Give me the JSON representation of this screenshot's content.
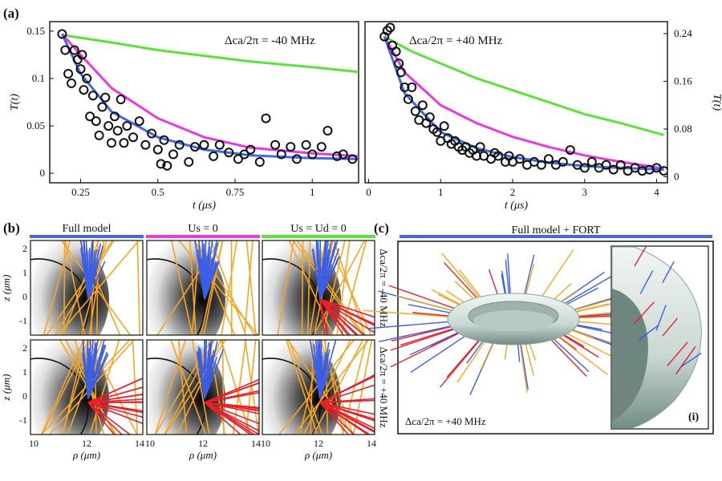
{
  "panel_labels": {
    "a": "(a)",
    "b": "(b)",
    "c": "(c)",
    "inset": "(i)"
  },
  "chart_data": [
    {
      "type": "scatter",
      "annotation": "Δca/2π = -40 MHz",
      "xlabel": "t (μs)",
      "ylabel": "T(t)",
      "xlim": [
        0.15,
        1.15
      ],
      "ylim": [
        -0.01,
        0.16
      ],
      "xticks": [
        "0.25",
        "0.5",
        "0.75",
        "1"
      ],
      "yticks": [
        "0",
        "0.05",
        "0.1",
        "0.15"
      ],
      "points": [
        [
          0.19,
          0.147
        ],
        [
          0.2,
          0.13
        ],
        [
          0.21,
          0.105
        ],
        [
          0.22,
          0.095
        ],
        [
          0.23,
          0.13
        ],
        [
          0.24,
          0.12
        ],
        [
          0.25,
          0.11
        ],
        [
          0.255,
          0.125
        ],
        [
          0.26,
          0.088
        ],
        [
          0.27,
          0.1
        ],
        [
          0.28,
          0.06
        ],
        [
          0.29,
          0.082
        ],
        [
          0.3,
          0.055
        ],
        [
          0.31,
          0.04
        ],
        [
          0.32,
          0.07
        ],
        [
          0.33,
          0.08
        ],
        [
          0.34,
          0.05
        ],
        [
          0.35,
          0.032
        ],
        [
          0.36,
          0.06
        ],
        [
          0.37,
          0.045
        ],
        [
          0.38,
          0.078
        ],
        [
          0.39,
          0.032
        ],
        [
          0.4,
          0.05
        ],
        [
          0.42,
          0.038
        ],
        [
          0.44,
          0.055
        ],
        [
          0.46,
          0.03
        ],
        [
          0.48,
          0.042
        ],
        [
          0.5,
          0.025
        ],
        [
          0.51,
          0.01
        ],
        [
          0.52,
          0.035
        ],
        [
          0.53,
          0.008
        ],
        [
          0.55,
          0.02
        ],
        [
          0.57,
          0.03
        ],
        [
          0.6,
          0.012
        ],
        [
          0.62,
          0.028
        ],
        [
          0.65,
          0.03
        ],
        [
          0.68,
          0.018
        ],
        [
          0.7,
          0.03
        ],
        [
          0.73,
          0.022
        ],
        [
          0.76,
          0.015
        ],
        [
          0.78,
          0.02
        ],
        [
          0.8,
          0.025
        ],
        [
          0.83,
          0.012
        ],
        [
          0.85,
          0.058
        ],
        [
          0.88,
          0.03
        ],
        [
          0.9,
          0.02
        ],
        [
          0.93,
          0.028
        ],
        [
          0.95,
          0.015
        ],
        [
          0.98,
          0.03
        ],
        [
          1.0,
          0.02
        ],
        [
          1.03,
          0.028
        ],
        [
          1.05,
          0.045
        ],
        [
          1.08,
          0.018
        ],
        [
          1.1,
          0.02
        ],
        [
          1.13,
          0.015
        ]
      ],
      "series": [
        {
          "name": "Full model",
          "color": "#4169e1",
          "x": [
            0.19,
            0.25,
            0.35,
            0.5,
            0.65,
            0.8,
            1.0,
            1.15
          ],
          "y": [
            0.147,
            0.105,
            0.065,
            0.038,
            0.025,
            0.019,
            0.016,
            0.015
          ]
        },
        {
          "name": "Us = 0",
          "color": "#e83ae0",
          "x": [
            0.19,
            0.25,
            0.35,
            0.5,
            0.65,
            0.8,
            1.0,
            1.15
          ],
          "y": [
            0.147,
            0.125,
            0.09,
            0.058,
            0.038,
            0.027,
            0.021,
            0.018
          ]
        },
        {
          "name": "Us = Ud = 0",
          "color": "#5ae33a",
          "x": [
            0.19,
            0.35,
            0.5,
            0.65,
            0.8,
            1.0,
            1.15
          ],
          "y": [
            0.146,
            0.138,
            0.13,
            0.124,
            0.118,
            0.112,
            0.107
          ]
        }
      ]
    },
    {
      "type": "scatter",
      "annotation": "Δca/2π = +40 MHz",
      "xlabel": "t (μs)",
      "ylabel": "T(t)",
      "xlim": [
        -0.05,
        4.15
      ],
      "ylim": [
        -0.01,
        0.26
      ],
      "xticks": [
        "0",
        "1",
        "2",
        "3",
        "4"
      ],
      "yticks": [
        "0",
        "0.08",
        "0.16",
        "0.24"
      ],
      "points": [
        [
          0.22,
          0.235
        ],
        [
          0.26,
          0.245
        ],
        [
          0.3,
          0.25
        ],
        [
          0.33,
          0.22
        ],
        [
          0.38,
          0.21
        ],
        [
          0.42,
          0.19
        ],
        [
          0.45,
          0.175
        ],
        [
          0.5,
          0.15
        ],
        [
          0.55,
          0.13
        ],
        [
          0.6,
          0.15
        ],
        [
          0.65,
          0.11
        ],
        [
          0.7,
          0.095
        ],
        [
          0.75,
          0.12
        ],
        [
          0.8,
          0.09
        ],
        [
          0.85,
          0.1
        ],
        [
          0.9,
          0.08
        ],
        [
          0.95,
          0.075
        ],
        [
          1.0,
          0.06
        ],
        [
          1.05,
          0.085
        ],
        [
          1.1,
          0.065
        ],
        [
          1.15,
          0.055
        ],
        [
          1.2,
          0.06
        ],
        [
          1.25,
          0.05
        ],
        [
          1.3,
          0.045
        ],
        [
          1.35,
          0.05
        ],
        [
          1.4,
          0.04
        ],
        [
          1.45,
          0.045
        ],
        [
          1.5,
          0.035
        ],
        [
          1.55,
          0.05
        ],
        [
          1.6,
          0.035
        ],
        [
          1.7,
          0.03
        ],
        [
          1.75,
          0.04
        ],
        [
          1.8,
          0.035
        ],
        [
          1.9,
          0.025
        ],
        [
          1.95,
          0.035
        ],
        [
          2.0,
          0.025
        ],
        [
          2.1,
          0.03
        ],
        [
          2.2,
          0.02
        ],
        [
          2.3,
          0.025
        ],
        [
          2.4,
          0.02
        ],
        [
          2.5,
          0.03
        ],
        [
          2.6,
          0.02
        ],
        [
          2.7,
          0.025
        ],
        [
          2.8,
          0.045
        ],
        [
          2.9,
          0.02
        ],
        [
          3.0,
          0.015
        ],
        [
          3.1,
          0.025
        ],
        [
          3.2,
          0.015
        ],
        [
          3.3,
          0.02
        ],
        [
          3.4,
          0.012
        ],
        [
          3.5,
          0.02
        ],
        [
          3.6,
          0.01
        ],
        [
          3.7,
          0.015
        ],
        [
          3.8,
          0.01
        ],
        [
          3.9,
          0.012
        ],
        [
          4.0,
          0.015
        ],
        [
          4.1,
          0.01
        ]
      ],
      "series": [
        {
          "name": "Full model",
          "color": "#4169e1",
          "x": [
            0.22,
            0.5,
            1.0,
            1.5,
            2.0,
            2.5,
            3.0,
            3.5,
            4.1
          ],
          "y": [
            0.235,
            0.14,
            0.075,
            0.048,
            0.033,
            0.024,
            0.018,
            0.015,
            0.012
          ]
        },
        {
          "name": "Us = 0",
          "color": "#e83ae0",
          "x": [
            0.22,
            0.5,
            1.0,
            1.5,
            2.0,
            2.5,
            3.0,
            3.5,
            4.1
          ],
          "y": [
            0.235,
            0.175,
            0.12,
            0.09,
            0.067,
            0.05,
            0.036,
            0.025,
            0.014
          ]
        },
        {
          "name": "Us = Ud = 0",
          "color": "#5ae33a",
          "x": [
            0.22,
            0.6,
            1.0,
            1.5,
            2.0,
            2.5,
            3.0,
            3.5,
            4.1
          ],
          "y": [
            0.235,
            0.21,
            0.19,
            0.165,
            0.145,
            0.125,
            0.105,
            0.09,
            0.07
          ]
        }
      ]
    }
  ],
  "panel_b": {
    "headers": [
      {
        "text": "Full model",
        "color": "#4169e1"
      },
      {
        "text": "Us = 0",
        "color": "#e83ae0"
      },
      {
        "text": "Us = Ud = 0",
        "color": "#5ae33a"
      }
    ],
    "row_labels": [
      "Δca/2π = -40 MHz",
      "Δca/2π = +40 MHz"
    ],
    "ylabel": "z (μm)",
    "xlabel": "ρ (μm)",
    "yticks": [
      "2",
      "1",
      "0",
      "-1"
    ],
    "xticks": [
      "10",
      "12",
      "14"
    ],
    "trajectory_colors": {
      "orange": "#f5a623",
      "blue": "#3a5ee8",
      "red": "#e8202a"
    }
  },
  "panel_c": {
    "header": "Full model + FORT",
    "header_color": "#4169e1",
    "annotation": "Δca/2π = +40 MHz",
    "inset_label": "(i)"
  }
}
